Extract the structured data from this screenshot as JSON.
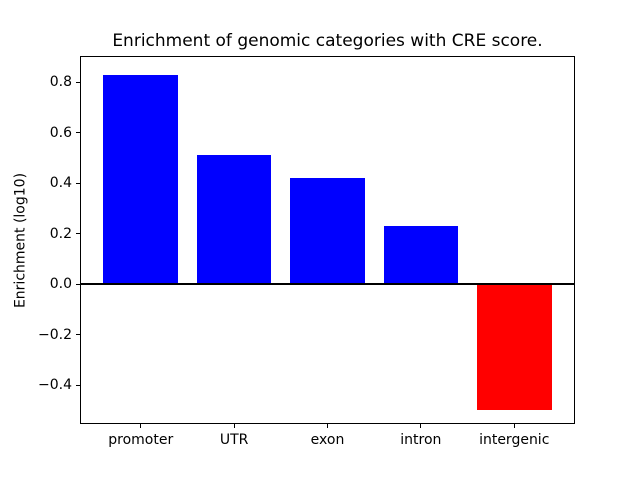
{
  "figure": {
    "background_color": "#ffffff",
    "axis_color": "#000000",
    "text_color": "#000000"
  },
  "chart_data": {
    "type": "bar",
    "title": "Enrichment of genomic categories with CRE score.",
    "ylabel": "Enrichment (log10)",
    "xlabel": "",
    "categories": [
      "promoter",
      "UTR",
      "exon",
      "intron",
      "intergenic"
    ],
    "values": [
      0.83,
      0.51,
      0.42,
      0.23,
      -0.5
    ],
    "bar_colors": [
      "#0000ff",
      "#0000ff",
      "#0000ff",
      "#0000ff",
      "#ff0000"
    ],
    "positive_color": "#0000ff",
    "negative_color": "#ff0000",
    "bar_width_fraction": 0.8,
    "ylim": [
      -0.55,
      0.9
    ],
    "yticks": [
      -0.4,
      -0.2,
      0.0,
      0.2,
      0.4,
      0.6,
      0.8
    ],
    "ytick_labels": [
      "−0.4",
      "−0.2",
      "0.0",
      "0.2",
      "0.4",
      "0.6",
      "0.8"
    ],
    "zero_line": true,
    "grid": false,
    "legend": null
  }
}
